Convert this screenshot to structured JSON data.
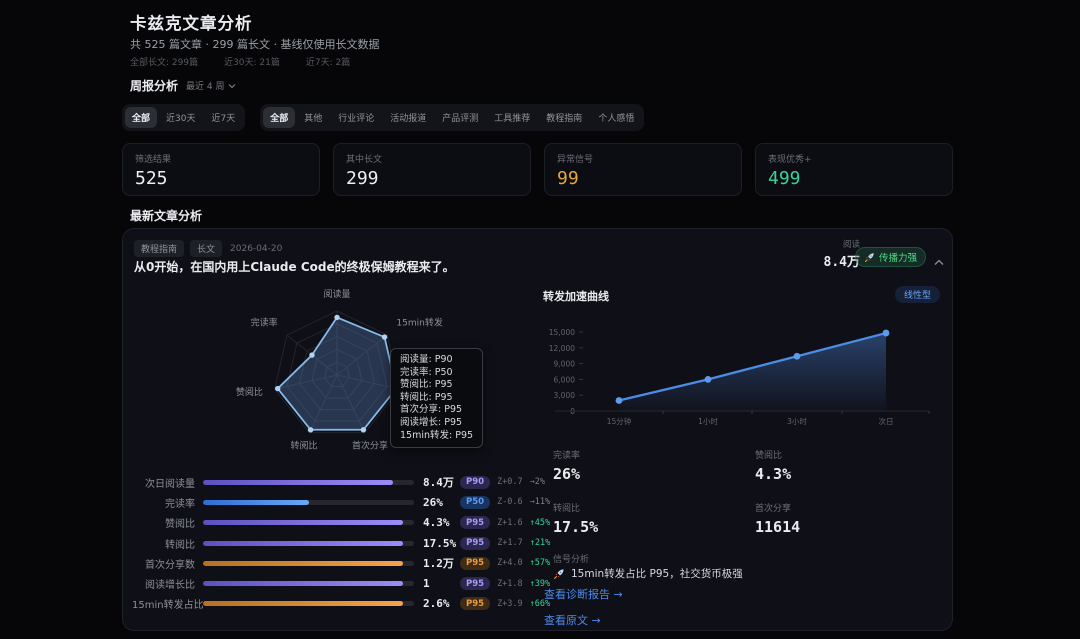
{
  "page": {
    "title": "卡兹克文章分析",
    "subtitle": "共 525 篇文章 · 299 篇长文 · 基线仅使用长文数据",
    "mini_stats": [
      {
        "label": "全部长文:",
        "value": "299篇"
      },
      {
        "label": "近30天:",
        "value": "21篇"
      },
      {
        "label": "近7天:",
        "value": "2篇"
      }
    ]
  },
  "weekly": {
    "title": "周报分析",
    "range_label": "最近 4 周"
  },
  "filters": {
    "time_tabs": [
      {
        "label": "全部",
        "active": true
      },
      {
        "label": "近30天",
        "active": false
      },
      {
        "label": "近7天",
        "active": false
      }
    ],
    "category_tabs": [
      {
        "label": "全部",
        "active": true
      },
      {
        "label": "其他",
        "active": false
      },
      {
        "label": "行业评论",
        "active": false
      },
      {
        "label": "活动报道",
        "active": false
      },
      {
        "label": "产品评测",
        "active": false
      },
      {
        "label": "工具推荐",
        "active": false
      },
      {
        "label": "教程指南",
        "active": false
      },
      {
        "label": "个人感悟",
        "active": false
      }
    ]
  },
  "summary_cards": [
    {
      "label": "筛选结果",
      "value": "525",
      "color": "#eceef2"
    },
    {
      "label": "其中长文",
      "value": "299",
      "color": "#eceef2"
    },
    {
      "label": "异常信号",
      "value": "99",
      "color": "#e2a93e"
    },
    {
      "label": "表现优秀+",
      "value": "499",
      "color": "#35d49a"
    }
  ],
  "section_title": "最新文章分析",
  "article": {
    "tags": [
      "教程指南",
      "长文"
    ],
    "date": "2026-04-20",
    "title": "从0开始，在国内用上Claude Code的终极保姆教程来了。",
    "read_label": "阅读",
    "read_value": "8.4万",
    "spread_badge": "传播力强"
  },
  "chart_data": [
    {
      "type": "radar",
      "categories": [
        "阅读量",
        "15min转发",
        "阅读增长",
        "首次分享",
        "转阅比",
        "赞阅比",
        "完读率"
      ],
      "values": [
        90,
        95,
        95,
        95,
        95,
        95,
        50
      ],
      "max": 100,
      "grid_levels": 5,
      "tooltip": [
        {
          "label": "阅读量",
          "value": "P90"
        },
        {
          "label": "完读率",
          "value": "P50"
        },
        {
          "label": "赞阅比",
          "value": "P95"
        },
        {
          "label": "转阅比",
          "value": "P95"
        },
        {
          "label": "首次分享",
          "value": "P95"
        },
        {
          "label": "阅读增长",
          "value": "P95"
        },
        {
          "label": "15min转发",
          "value": "P95"
        }
      ]
    },
    {
      "type": "line",
      "title": "转发加速曲线",
      "badge": "线性型",
      "x": [
        "15分钟",
        "1小时",
        "3小时",
        "次日"
      ],
      "values": [
        2000,
        6000,
        10400,
        14800
      ],
      "ylim": [
        0,
        15000
      ],
      "yticks": [
        0,
        3000,
        6000,
        9000,
        12000,
        15000
      ],
      "grid": false,
      "area": true
    }
  ],
  "metric_bars": [
    {
      "label": "次日阅读量",
      "value": "8.4万",
      "fill": 0.9,
      "color": "purple",
      "badge": "P90",
      "badge_style": "purple",
      "z": "Z+0.7",
      "delta": "→2%",
      "delta_style": "flat"
    },
    {
      "label": "完读率",
      "value": "26%",
      "fill": 0.5,
      "color": "blue",
      "badge": "P50",
      "badge_style": "blue",
      "z": "Z-0.6",
      "delta": "→11%",
      "delta_style": "flat"
    },
    {
      "label": "赞阅比",
      "value": "4.3%",
      "fill": 0.95,
      "color": "purple",
      "badge": "P95",
      "badge_style": "purple",
      "z": "Z+1.6",
      "delta": "↑45%",
      "delta_style": "up"
    },
    {
      "label": "转阅比",
      "value": "17.5%",
      "fill": 0.95,
      "color": "purple",
      "badge": "P95",
      "badge_style": "purple",
      "z": "Z+1.7",
      "delta": "↑21%",
      "delta_style": "up"
    },
    {
      "label": "首次分享数",
      "value": "1.2万",
      "fill": 0.95,
      "color": "orange",
      "badge": "P95",
      "badge_style": "orange",
      "z": "Z+4.0",
      "delta": "↑57%",
      "delta_style": "up"
    },
    {
      "label": "阅读增长比",
      "value": "1",
      "fill": 0.95,
      "color": "purple",
      "badge": "P95",
      "badge_style": "purple",
      "z": "Z+1.8",
      "delta": "↑39%",
      "delta_style": "up"
    },
    {
      "label": "15min转发占比",
      "value": "2.6%",
      "fill": 0.95,
      "color": "orange",
      "badge": "P95",
      "badge_style": "orange",
      "z": "Z+3.9",
      "delta": "↑66%",
      "delta_style": "up"
    }
  ],
  "stats_grid": [
    {
      "label": "完读率",
      "value": "26%"
    },
    {
      "label": "赞阅比",
      "value": "4.3%"
    },
    {
      "label": "转阅比",
      "value": "17.5%"
    },
    {
      "label": "首次分享",
      "value": "11614"
    }
  ],
  "signal": {
    "label": "信号分析",
    "text": "15min转发占比 P95，社交货币极强"
  },
  "links": [
    {
      "label": "查看诊断报告 →"
    },
    {
      "label": "查看原文 →"
    }
  ],
  "colors": {
    "accent_blue": "#4f8ee8",
    "purple": "#8b7cf8",
    "orange": "#f09a3e",
    "green": "#35d49a",
    "warn": "#e2a93e"
  }
}
